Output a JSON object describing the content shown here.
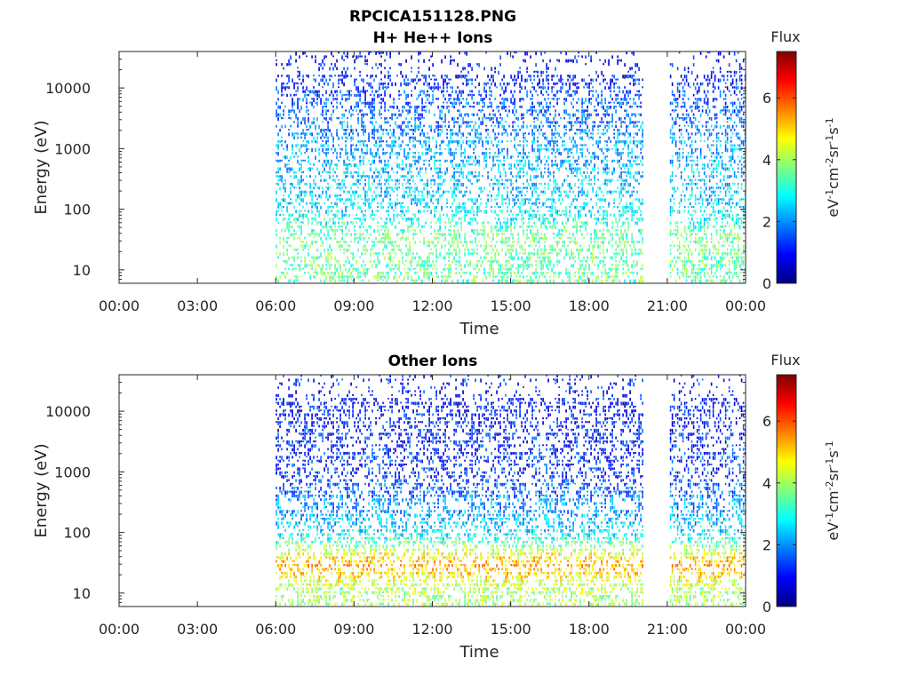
{
  "figure": {
    "title_line1": "RPCICA151128.PNG",
    "title_line2": "H+ He++ Ions",
    "colorbar_label": "Flux",
    "colorbar_units": "eV-1cm-2sr-1s-1",
    "colormap": [
      "#00007f",
      "#0000ff",
      "#007fff",
      "#00ffff",
      "#7fff7f",
      "#ffff00",
      "#ff7f00",
      "#ff0000",
      "#7f0000"
    ]
  },
  "chart_data": [
    {
      "type": "heatmap",
      "title": "H+ He++ Ions",
      "xlabel": "Time",
      "ylabel": "Energy (eV)",
      "x_ticks": [
        "00:00",
        "03:00",
        "06:00",
        "09:00",
        "12:00",
        "15:00",
        "18:00",
        "21:00",
        "00:00"
      ],
      "x_range_hours": [
        0,
        24
      ],
      "y_scale": "log",
      "y_ticks": [
        "10",
        "100",
        "1000",
        "10000"
      ],
      "y_range_ev": [
        6,
        40000
      ],
      "data_intervals_hours": [
        [
          6.0,
          20.05
        ],
        [
          21.1,
          24.0
        ]
      ],
      "colorbar": {
        "label": "Flux",
        "units": "eV-1cm-2sr-1s-1",
        "range": [
          0,
          7.5
        ],
        "ticks": [
          "0",
          "2",
          "4",
          "6"
        ]
      },
      "energy_profile": [
        {
          "energy_ev": 10,
          "flux": 3.5
        },
        {
          "energy_ev": 30,
          "flux": 3.6
        },
        {
          "energy_ev": 100,
          "flux": 2.6
        },
        {
          "energy_ev": 1000,
          "flux": 2.2
        },
        {
          "energy_ev": 10000,
          "flux": 1.3
        },
        {
          "energy_ev": 30000,
          "flux": 0.9
        }
      ]
    },
    {
      "type": "heatmap",
      "title": "Other Ions",
      "xlabel": "Time",
      "ylabel": "Energy (eV)",
      "x_ticks": [
        "00:00",
        "03:00",
        "06:00",
        "09:00",
        "12:00",
        "15:00",
        "18:00",
        "21:00",
        "00:00"
      ],
      "x_range_hours": [
        0,
        24
      ],
      "y_scale": "log",
      "y_ticks": [
        "10",
        "100",
        "1000",
        "10000"
      ],
      "y_range_ev": [
        6,
        40000
      ],
      "data_intervals_hours": [
        [
          6.0,
          20.05
        ],
        [
          21.1,
          24.0
        ]
      ],
      "colorbar": {
        "label": "Flux",
        "units": "eV-1cm-2sr-1s-1",
        "range": [
          0,
          7.5
        ],
        "ticks": [
          "0",
          "2",
          "4",
          "6"
        ]
      },
      "energy_profile": [
        {
          "energy_ev": 10,
          "flux": 4.0
        },
        {
          "energy_ev": 30,
          "flux": 5.4
        },
        {
          "energy_ev": 100,
          "flux": 2.5
        },
        {
          "energy_ev": 1000,
          "flux": 1.3
        },
        {
          "energy_ev": 10000,
          "flux": 1.0
        }
      ]
    }
  ]
}
